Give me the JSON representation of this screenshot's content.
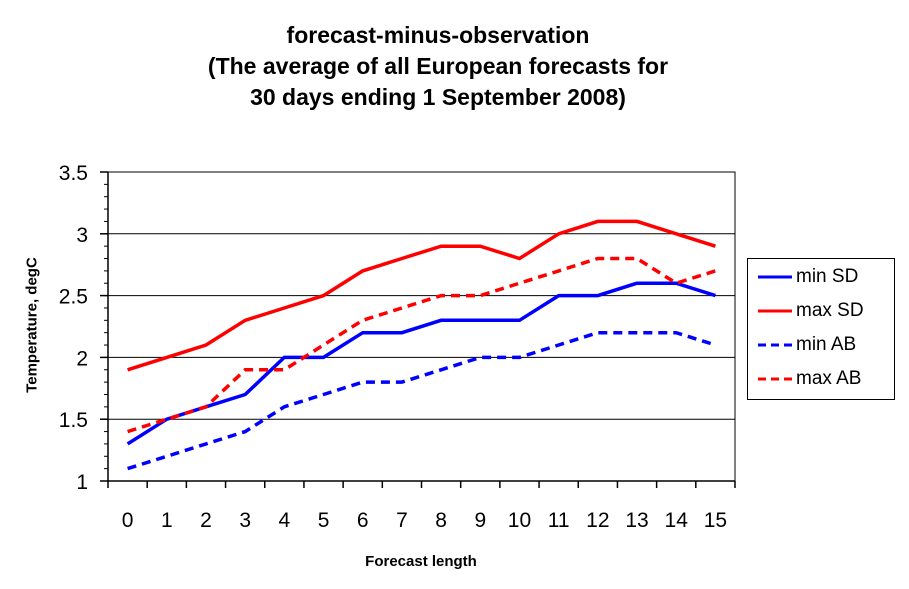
{
  "chart_data": {
    "type": "line",
    "title_lines": [
      "forecast-minus-observation",
      "(The average of all European forecasts for",
      "30 days ending 1 September 2008)"
    ],
    "xlabel": "Forecast length",
    "ylabel": "Temperature, degC",
    "categories": [
      "0",
      "1",
      "2",
      "3",
      "4",
      "5",
      "6",
      "7",
      "8",
      "9",
      "10",
      "11",
      "12",
      "13",
      "14",
      "15"
    ],
    "y_ticks": [
      "1",
      "1.5",
      "2",
      "2.5",
      "3",
      "3.5"
    ],
    "ylim": [
      1,
      3.5
    ],
    "grid": "horizontal",
    "legend_position": "right",
    "series": [
      {
        "name": "min SD",
        "color": "#0000ff",
        "dash": false,
        "values": [
          1.3,
          1.5,
          1.6,
          1.7,
          2.0,
          2.0,
          2.2,
          2.2,
          2.3,
          2.3,
          2.3,
          2.5,
          2.5,
          2.6,
          2.6,
          2.5
        ]
      },
      {
        "name": "max SD",
        "color": "#ff0000",
        "dash": false,
        "values": [
          1.9,
          2.0,
          2.1,
          2.3,
          2.4,
          2.5,
          2.7,
          2.8,
          2.9,
          2.9,
          2.8,
          3.0,
          3.1,
          3.1,
          3.0,
          2.9
        ]
      },
      {
        "name": "min AB",
        "color": "#0000ff",
        "dash": true,
        "values": [
          1.1,
          1.2,
          1.3,
          1.4,
          1.6,
          1.7,
          1.8,
          1.8,
          1.9,
          2.0,
          2.0,
          2.1,
          2.2,
          2.2,
          2.2,
          2.1
        ]
      },
      {
        "name": "max AB",
        "color": "#ff0000",
        "dash": true,
        "values": [
          1.4,
          1.5,
          1.6,
          1.9,
          1.9,
          2.1,
          2.3,
          2.4,
          2.5,
          2.5,
          2.6,
          2.7,
          2.8,
          2.8,
          2.6,
          2.7
        ]
      }
    ]
  }
}
